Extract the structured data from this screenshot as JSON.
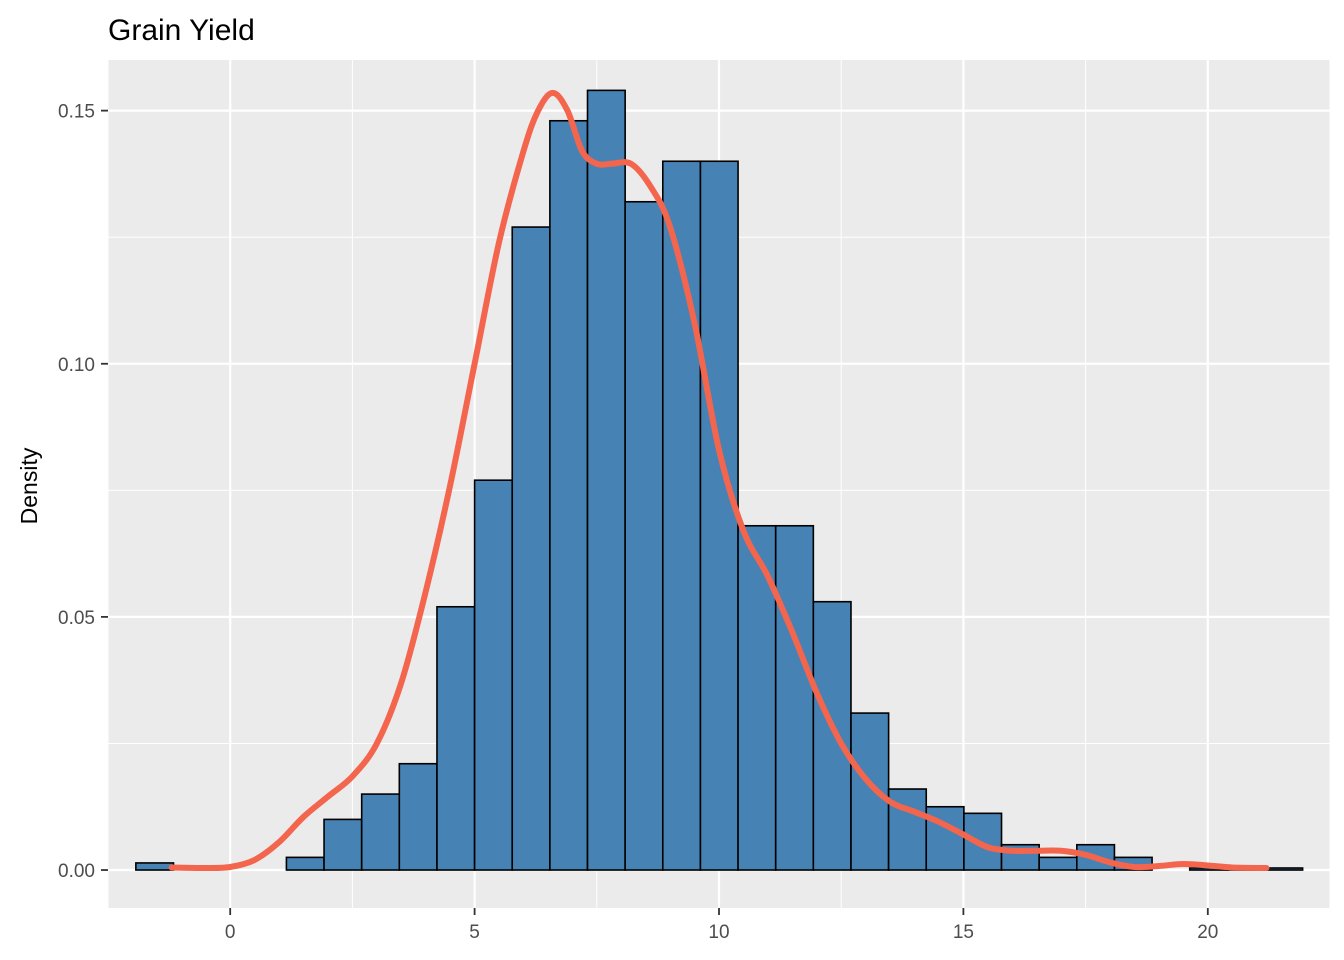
{
  "chart_data": {
    "type": "histogram",
    "title": "Grain Yield",
    "xlabel": "",
    "ylabel": "Density",
    "xlim": [
      -2.5,
      22.5
    ],
    "ylim": [
      -0.0075,
      0.16
    ],
    "x_ticks": [
      0,
      5,
      10,
      15,
      20
    ],
    "y_ticks": [
      0.0,
      0.05,
      0.1,
      0.15
    ],
    "x_tick_labels": [
      "0",
      "5",
      "10",
      "15",
      "20"
    ],
    "y_tick_labels": [
      "0.00",
      "0.05",
      "0.10",
      "0.15"
    ],
    "grid": true,
    "bins": {
      "start": -1.93,
      "width": 0.77,
      "density": [
        0.0014,
        0.0,
        0.0,
        0.0,
        0.0025,
        0.01,
        0.015,
        0.021,
        0.052,
        0.077,
        0.127,
        0.148,
        0.154,
        0.132,
        0.14,
        0.14,
        0.068,
        0.068,
        0.053,
        0.031,
        0.016,
        0.0125,
        0.0112,
        0.005,
        0.0025,
        0.005,
        0.0025,
        0.0,
        0.0004,
        0.0004,
        0.0004
      ]
    },
    "density_curve": {
      "x": [
        -1.2,
        -0.5,
        0.0,
        0.5,
        1.0,
        1.5,
        2.0,
        2.5,
        3.0,
        3.5,
        4.0,
        4.5,
        5.0,
        5.5,
        6.0,
        6.3,
        6.6,
        6.9,
        7.2,
        7.5,
        7.8,
        8.2,
        8.6,
        9.0,
        9.5,
        10.0,
        10.5,
        11.0,
        11.5,
        12.0,
        12.5,
        13.0,
        13.5,
        14.0,
        14.5,
        15.0,
        15.5,
        16.0,
        16.5,
        17.0,
        17.5,
        18.0,
        18.5,
        19.0,
        19.5,
        20.0,
        20.5,
        21.2
      ],
      "y": [
        0.0005,
        0.0004,
        0.0006,
        0.002,
        0.0055,
        0.0105,
        0.0145,
        0.0185,
        0.025,
        0.037,
        0.055,
        0.076,
        0.1,
        0.124,
        0.142,
        0.15,
        0.1535,
        0.15,
        0.142,
        0.1395,
        0.1395,
        0.1395,
        0.135,
        0.127,
        0.108,
        0.083,
        0.067,
        0.058,
        0.047,
        0.035,
        0.025,
        0.018,
        0.0135,
        0.0115,
        0.0095,
        0.007,
        0.0045,
        0.0038,
        0.0038,
        0.0038,
        0.003,
        0.0015,
        0.0006,
        0.0008,
        0.0012,
        0.0009,
        0.0005,
        0.0004
      ]
    },
    "colors": {
      "bar_fill": "#4682B4",
      "bar_stroke": "#000000",
      "curve": "#F4654D",
      "panel": "#EBEBEB",
      "grid": "#FFFFFF"
    }
  }
}
